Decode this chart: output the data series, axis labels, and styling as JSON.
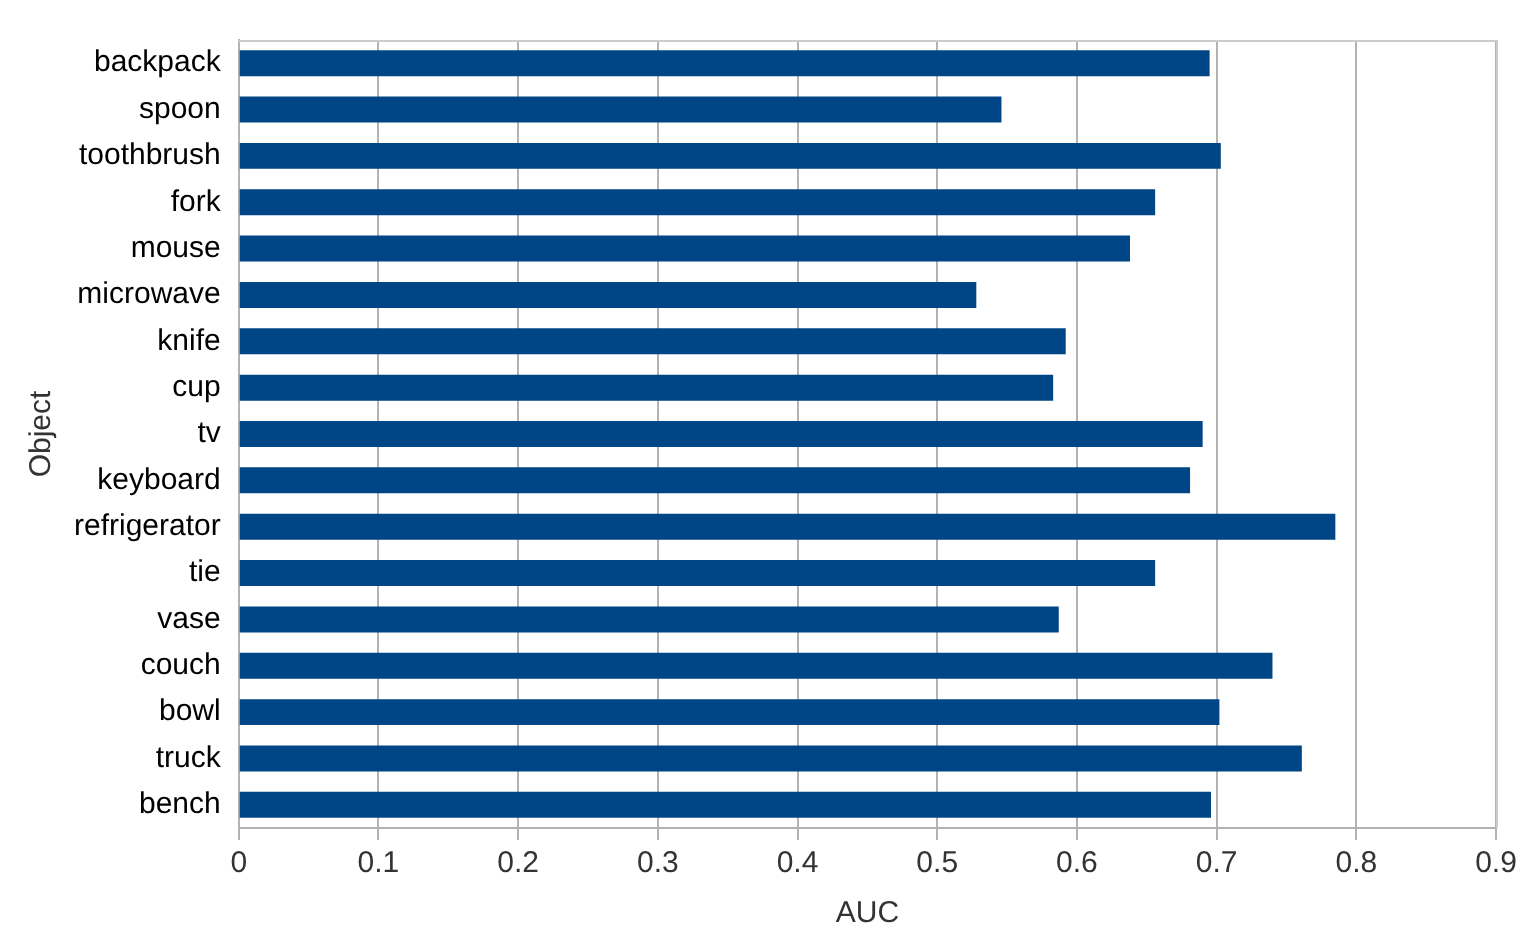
{
  "chart_data": {
    "type": "bar",
    "orientation": "horizontal",
    "xlabel": "AUC",
    "ylabel": "Object",
    "categories": [
      "backpack",
      "spoon",
      "toothbrush",
      "fork",
      "mouse",
      "microwave",
      "knife",
      "cup",
      "tv",
      "keyboard",
      "refrigerator",
      "tie",
      "vase",
      "couch",
      "bowl",
      "truck",
      "bench"
    ],
    "values": [
      0.695,
      0.546,
      0.703,
      0.656,
      0.638,
      0.528,
      0.592,
      0.583,
      0.69,
      0.681,
      0.785,
      0.656,
      0.587,
      0.74,
      0.702,
      0.761,
      0.696
    ],
    "color": "#004586",
    "xlim": [
      0,
      0.9
    ],
    "xticks": [
      0,
      0.1,
      0.2,
      0.3,
      0.4,
      0.5,
      0.6,
      0.7,
      0.8,
      0.9
    ],
    "grid": "x",
    "legend": false
  }
}
